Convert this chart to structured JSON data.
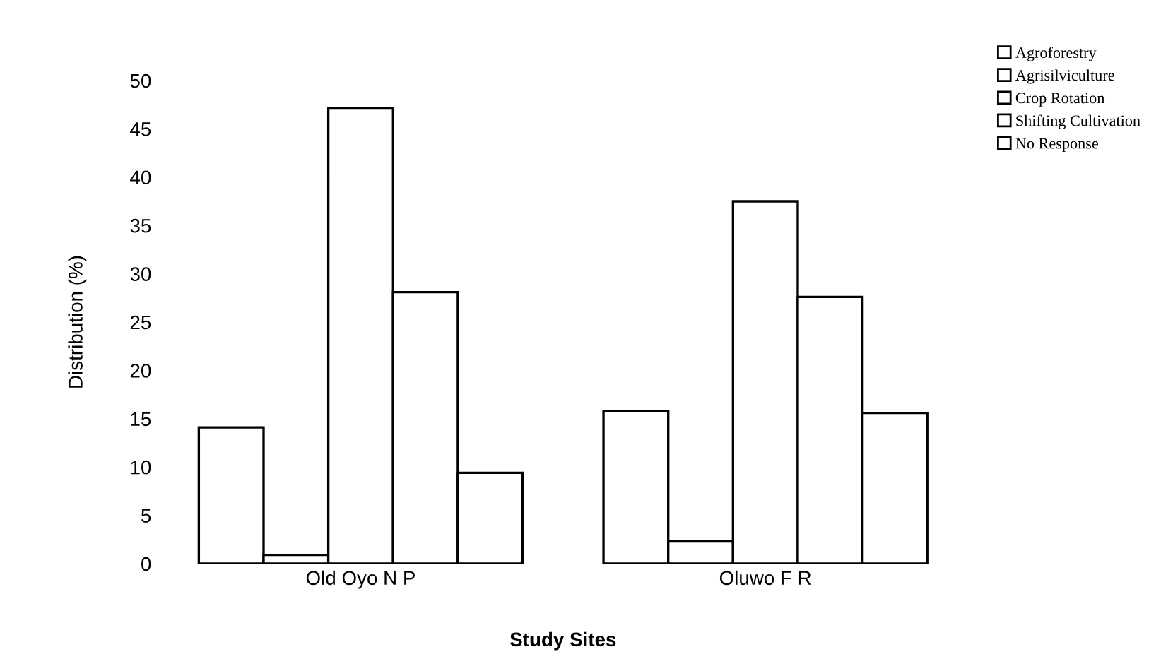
{
  "chart_data": {
    "type": "bar",
    "xlabel": "Study Sites",
    "ylabel": "Distribution (%)",
    "categories": [
      "Old Oyo N P",
      "Oluwo F R"
    ],
    "series": [
      {
        "name": "Agroforestry",
        "color": "#ffffff",
        "values": [
          14.1,
          15.8
        ]
      },
      {
        "name": "Agrisilviculture",
        "color": "#ffffff",
        "values": [
          0.9,
          2.3
        ]
      },
      {
        "name": "Crop Rotation",
        "color": "#ffffff",
        "values": [
          47.1,
          37.5
        ]
      },
      {
        "name": "Shifting Cultivation",
        "color": "#ffffff",
        "values": [
          28.1,
          27.6
        ]
      },
      {
        "name": "No Response",
        "color": "#ffffff",
        "values": [
          9.4,
          15.6
        ]
      }
    ],
    "ylim": [
      0,
      50
    ],
    "yticks": [
      0,
      5,
      10,
      15,
      20,
      25,
      30,
      35,
      40,
      45,
      50
    ],
    "grid": false,
    "legend": "top right"
  }
}
